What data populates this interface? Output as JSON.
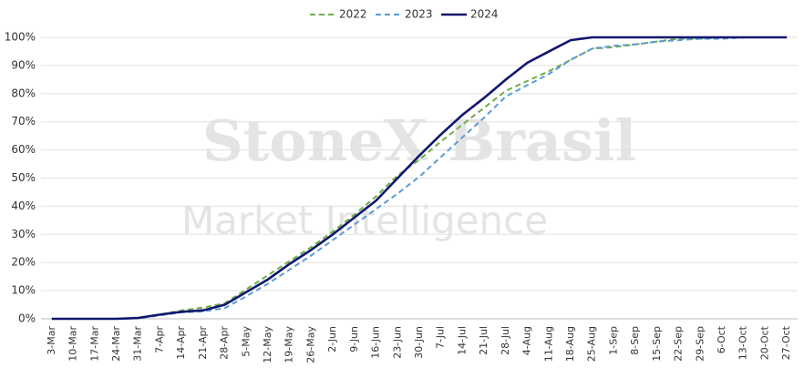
{
  "chart_data": {
    "type": "line",
    "watermark": [
      "StoneX Brasil",
      "Market Intelligence"
    ],
    "categories": [
      "3-Mar",
      "10-Mar",
      "17-Mar",
      "24-Mar",
      "31-Mar",
      "7-Apr",
      "14-Apr",
      "21-Apr",
      "28-Apr",
      "5-May",
      "12-May",
      "19-May",
      "26-May",
      "2-Jun",
      "9-Jun",
      "16-Jun",
      "23-Jun",
      "30-Jun",
      "7-Jul",
      "14-Jul",
      "21-Jul",
      "28-Jul",
      "4-Aug",
      "11-Aug",
      "18-Aug",
      "25-Aug",
      "1-Sep",
      "8-Sep",
      "15-Sep",
      "22-Sep",
      "29-Sep",
      "6-Oct",
      "13-Oct",
      "20-Oct",
      "27-Oct"
    ],
    "series": [
      {
        "name": "2022",
        "color": "#70ad47",
        "dash": true,
        "values": [
          0,
          0,
          0,
          0,
          0.3,
          1.5,
          3,
          4,
          5.5,
          10.5,
          15.5,
          20.5,
          25.5,
          31,
          37,
          43.5,
          51,
          56.5,
          63,
          69,
          75,
          81,
          84.5,
          88,
          92,
          96,
          96.5,
          97.5,
          98.5,
          99.5,
          99.5,
          100,
          100,
          100,
          100
        ]
      },
      {
        "name": "2023",
        "color": "#5b9bd5",
        "dash": true,
        "values": [
          0,
          0,
          0,
          0,
          0.2,
          1.2,
          2.3,
          2.6,
          3.8,
          8,
          12.5,
          17.5,
          22.5,
          28,
          33.5,
          39,
          44.5,
          50.5,
          57.5,
          64.5,
          71.5,
          79,
          83,
          87,
          92,
          96,
          97,
          97.5,
          98.5,
          99,
          99.5,
          99.5,
          100,
          100,
          100
        ]
      },
      {
        "name": "2024",
        "color": "#10186e",
        "dash": false,
        "values": [
          0,
          0,
          0,
          0,
          0.3,
          1.5,
          2.5,
          3,
          5,
          9.5,
          14,
          19.5,
          24.5,
          30,
          36,
          42,
          50,
          58,
          65.5,
          72.5,
          78.5,
          85,
          91,
          95,
          99,
          100,
          100,
          100,
          100,
          100,
          100,
          100,
          100,
          100,
          100
        ]
      }
    ],
    "ylim": [
      0,
      100
    ],
    "yticks": [
      {
        "value": 0,
        "label": "0%"
      },
      {
        "value": 10,
        "label": "10%"
      },
      {
        "value": 20,
        "label": "20%"
      },
      {
        "value": 30,
        "label": "30%"
      },
      {
        "value": 40,
        "label": "40%"
      },
      {
        "value": 50,
        "label": "50%"
      },
      {
        "value": 60,
        "label": "60%"
      },
      {
        "value": 70,
        "label": "70%"
      },
      {
        "value": 80,
        "label": "80%"
      },
      {
        "value": 90,
        "label": "90%"
      },
      {
        "value": 100,
        "label": "100%"
      }
    ],
    "grid": true
  }
}
